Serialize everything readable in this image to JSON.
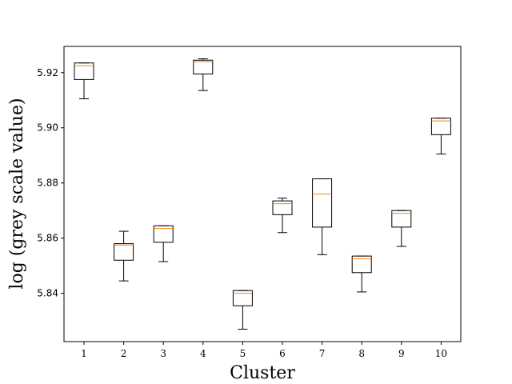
{
  "chart_data": {
    "type": "box",
    "xlabel": "Cluster",
    "ylabel": "log (grey scale value)",
    "ylim": [
      5.8225,
      5.9295
    ],
    "yticks": [
      5.84,
      5.86,
      5.88,
      5.9,
      5.92
    ],
    "ytick_labels": [
      "5.84",
      "5.86",
      "5.88",
      "5.90",
      "5.92"
    ],
    "categories": [
      "1",
      "2",
      "3",
      "4",
      "5",
      "6",
      "7",
      "8",
      "9",
      "10"
    ],
    "boxes": [
      {
        "label": "1",
        "whislo": 5.9105,
        "q1": 5.9175,
        "med": 5.9225,
        "q3": 5.9235,
        "whishi": 5.9235
      },
      {
        "label": "2",
        "whislo": 5.8445,
        "q1": 5.852,
        "med": 5.8575,
        "q3": 5.858,
        "whishi": 5.8625
      },
      {
        "label": "3",
        "whislo": 5.8515,
        "q1": 5.8585,
        "med": 5.8635,
        "q3": 5.8645,
        "whishi": 5.8645
      },
      {
        "label": "4",
        "whislo": 5.9135,
        "q1": 5.9195,
        "med": 5.924,
        "q3": 5.9245,
        "whishi": 5.925
      },
      {
        "label": "5",
        "whislo": 5.827,
        "q1": 5.8355,
        "med": 5.84,
        "q3": 5.841,
        "whishi": 5.841
      },
      {
        "label": "6",
        "whislo": 5.862,
        "q1": 5.8685,
        "med": 5.8725,
        "q3": 5.8735,
        "whishi": 5.8745
      },
      {
        "label": "7",
        "whislo": 5.854,
        "q1": 5.864,
        "med": 5.876,
        "q3": 5.8815,
        "whishi": 5.8815
      },
      {
        "label": "8",
        "whislo": 5.8405,
        "q1": 5.8475,
        "med": 5.8525,
        "q3": 5.8535,
        "whishi": 5.8535
      },
      {
        "label": "9",
        "whislo": 5.857,
        "q1": 5.864,
        "med": 5.869,
        "q3": 5.87,
        "whishi": 5.87
      },
      {
        "label": "10",
        "whislo": 5.8905,
        "q1": 5.8975,
        "med": 5.9025,
        "q3": 5.9035,
        "whishi": 5.9035
      }
    ],
    "colors": {
      "box": "#000000",
      "median": "#ff7f0e"
    },
    "grid": false,
    "legend": "none"
  }
}
